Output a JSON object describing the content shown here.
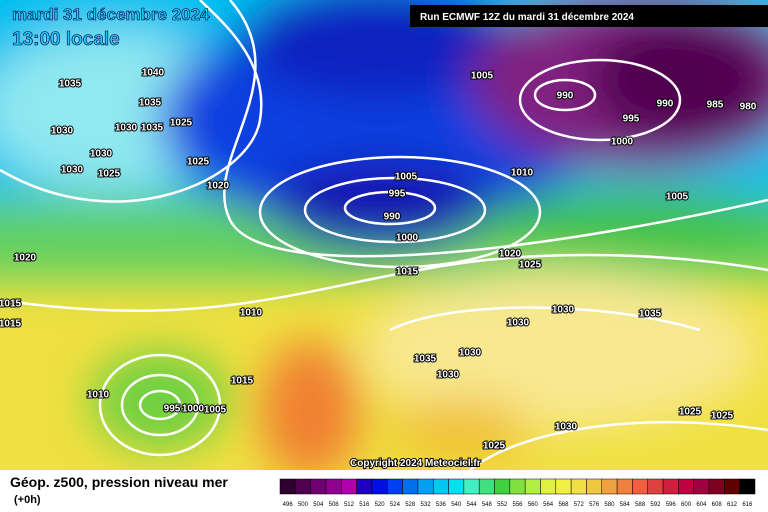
{
  "header": {
    "date": "mardi 31 décembre 2024",
    "time": "13:00 locale",
    "run": "Run ECMWF 12Z du mardi 31 décembre 2024"
  },
  "isobar_labels": [
    1040,
    1035,
    1035,
    1030,
    1030,
    1035,
    1025,
    1030,
    1025,
    1030,
    1025,
    1020,
    1005,
    990,
    990,
    985,
    980,
    995,
    1000,
    1005,
    1010,
    1005,
    995,
    990,
    1000,
    1015,
    1020,
    1025,
    1020,
    1015,
    1015,
    1010,
    1030,
    1030,
    1035,
    1035,
    1030,
    1030,
    1010,
    995,
    1000,
    1005,
    1015,
    1025,
    1025,
    1030,
    1025
  ],
  "copyright": "Copyright 2024 Meteociel.fr",
  "caption": {
    "title": "Géop. z500, pression niveau mer",
    "lead": "(+0h)"
  },
  "colorbar": {
    "labels": [
      496,
      500,
      504,
      508,
      512,
      516,
      520,
      524,
      528,
      532,
      536,
      540,
      544,
      548,
      552,
      556,
      560,
      564,
      568,
      572,
      576,
      580,
      584,
      588,
      592,
      596,
      600,
      604,
      608,
      612,
      616
    ],
    "colors": [
      "#300030",
      "#500050",
      "#700070",
      "#900090",
      "#b000b0",
      "#2000c0",
      "#0010e0",
      "#0040f0",
      "#0070f0",
      "#00a0f0",
      "#00c8f0",
      "#00e0f0",
      "#40f0c0",
      "#40e080",
      "#40d040",
      "#80e040",
      "#b0f040",
      "#e0f040",
      "#f0f040",
      "#f0e040",
      "#f0c840",
      "#f0a040",
      "#f08040",
      "#f06040",
      "#e04040",
      "#d02040",
      "#c00040",
      "#a00040",
      "#800020",
      "#600000",
      "#000000"
    ]
  }
}
